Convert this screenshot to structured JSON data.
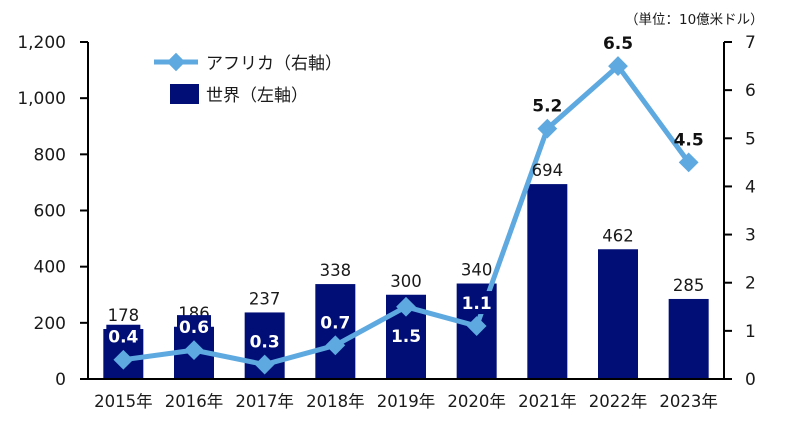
{
  "chart_data": {
    "type": "bar+line",
    "unit_note": "（単位：10億米ドル）",
    "categories": [
      "2015年",
      "2016年",
      "2017年",
      "2018年",
      "2019年",
      "2020年",
      "2021年",
      "2022年",
      "2023年"
    ],
    "series": [
      {
        "name": "世界（左軸）",
        "type": "bar",
        "axis": "left",
        "color": "#000E76",
        "values": [
          178,
          186,
          237,
          338,
          300,
          340,
          694,
          462,
          285
        ],
        "labels": [
          "178",
          "186",
          "237",
          "338",
          "300",
          "340",
          "694",
          "462",
          "285"
        ]
      },
      {
        "name": "アフリカ（右軸）",
        "type": "line",
        "axis": "right",
        "color": "#5DA9E0",
        "marker": "diamond",
        "values": [
          0.4,
          0.6,
          0.3,
          0.7,
          1.5,
          1.1,
          5.2,
          6.5,
          4.5
        ],
        "labels": [
          "0.4",
          "0.6",
          "0.3",
          "0.7",
          "1.5",
          "1.1",
          "5.2",
          "6.5",
          "4.5"
        ],
        "label_positions": [
          "above",
          "above",
          "above",
          "above",
          "below",
          "above",
          "above",
          "above",
          "above"
        ]
      }
    ],
    "left_axis": {
      "range": [
        0,
        1200
      ],
      "ticks": [
        0,
        200,
        400,
        600,
        800,
        1000,
        1200
      ],
      "tick_labels": [
        "0",
        "200",
        "400",
        "600",
        "800",
        "1,000",
        "1,200"
      ]
    },
    "right_axis": {
      "range": [
        0,
        7
      ],
      "ticks": [
        0,
        1,
        2,
        3,
        4,
        5,
        6,
        7
      ],
      "tick_labels": [
        "0",
        "1",
        "2",
        "3",
        "4",
        "5",
        "6",
        "7"
      ]
    },
    "legend": {
      "placement": "top-left",
      "entries": [
        {
          "label": "アフリカ（右軸）",
          "kind": "line-diamond",
          "color": "#5DA9E0"
        },
        {
          "label": "世界（左軸）",
          "kind": "box",
          "color": "#000E76"
        }
      ]
    },
    "grid": false,
    "xlabel": "",
    "ylabel": "",
    "title": ""
  }
}
